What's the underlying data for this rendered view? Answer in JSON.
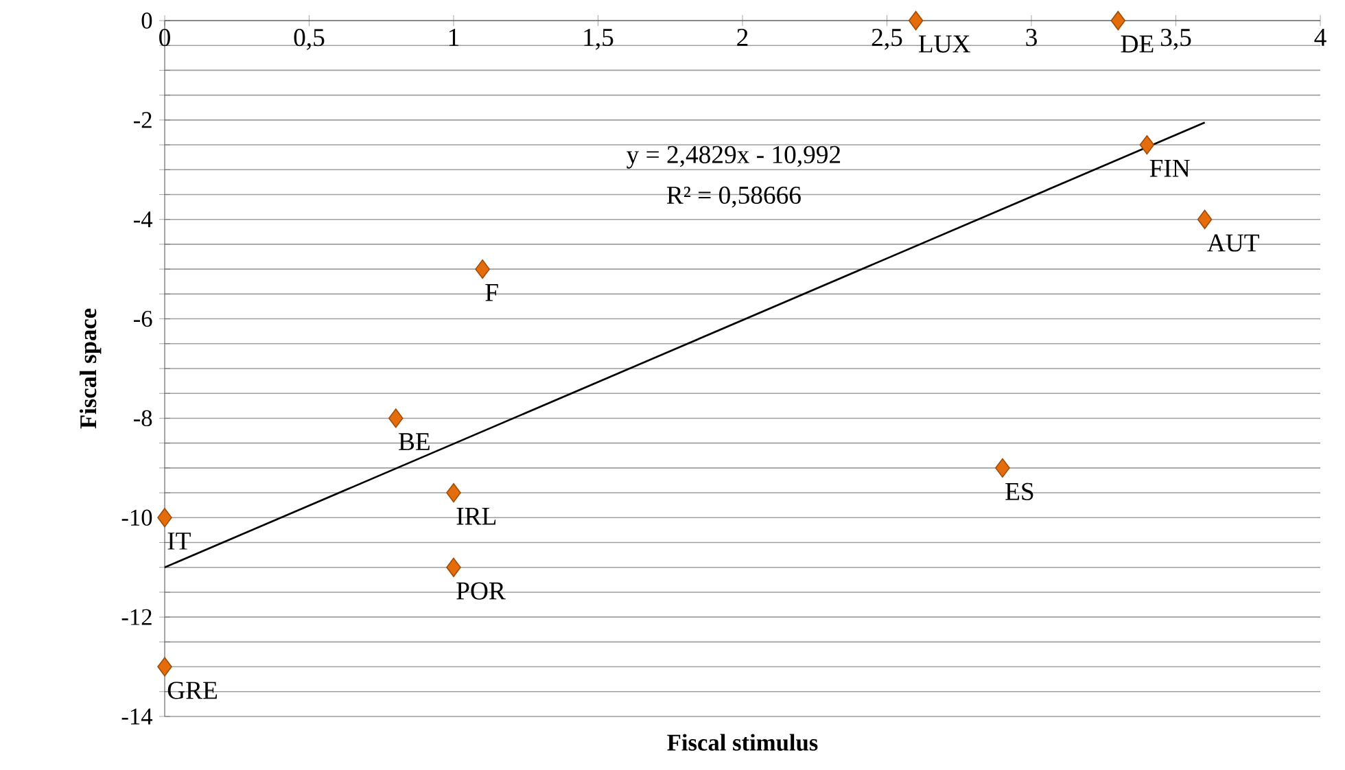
{
  "chart_data": {
    "type": "scatter",
    "xlabel": "Fiscal stimulus",
    "ylabel": "Fiscal space",
    "xlim": [
      0,
      4
    ],
    "ylim": [
      -14,
      0
    ],
    "xticks": [
      0,
      {
        "value": 0.5,
        "label": "0,5"
      },
      1,
      {
        "value": 1.5,
        "label": "1,5"
      },
      2,
      {
        "value": 2.5,
        "label": "2,5"
      },
      3,
      {
        "value": 3.5,
        "label": "3,5"
      },
      4
    ],
    "yticks": [
      -14,
      {
        "value": -13.5,
        "label": null
      },
      {
        "value": -13,
        "label": null
      },
      {
        "value": -12.5,
        "label": null
      },
      -12,
      {
        "value": -11.5,
        "label": null
      },
      {
        "value": -11,
        "label": null
      },
      {
        "value": -10.5,
        "label": null
      },
      -10,
      {
        "value": -9.5,
        "label": null
      },
      {
        "value": -9,
        "label": null
      },
      {
        "value": -8.5,
        "label": null
      },
      -8,
      {
        "value": -7.5,
        "label": null
      },
      {
        "value": -7,
        "label": null
      },
      {
        "value": -6.5,
        "label": null
      },
      -6,
      {
        "value": -5.5,
        "label": null
      },
      {
        "value": -5,
        "label": null
      },
      {
        "value": -4.5,
        "label": null
      },
      -4,
      {
        "value": -3.5,
        "label": null
      },
      {
        "value": -3,
        "label": null
      },
      {
        "value": -2.5,
        "label": null
      },
      -2,
      {
        "value": -1.5,
        "label": null
      },
      {
        "value": -1,
        "label": null
      },
      {
        "value": -0.5,
        "label": null
      },
      0
    ],
    "grid": "y",
    "marker": "diamond",
    "series": [
      {
        "color": "#e46c0a",
        "x": [
          2.6,
          3.3,
          3.4,
          3.6,
          1.1,
          0.8,
          1.0,
          1.0,
          2.9,
          0,
          0
        ],
        "values": [
          0,
          0,
          -2.5,
          -4,
          -5,
          -8,
          -9.5,
          -11,
          -9,
          -10,
          -13
        ]
      },
      {
        "type": "line",
        "color": "#000000",
        "marker": "none",
        "x": [
          0,
          3.6
        ],
        "values": [
          -11,
          -2.05
        ]
      }
    ],
    "annotations": [
      "y = 2,4829x - 10,992",
      "R² = 0,58666",
      {
        "text": "LUX",
        "x": 2.6,
        "y": 0
      },
      {
        "text": "DE",
        "x": 3.3,
        "y": 0
      },
      {
        "text": "FIN",
        "x": 3.4,
        "y": -2.5
      },
      {
        "text": "AUT",
        "x": 3.6,
        "y": -4
      },
      {
        "text": "F",
        "x": 1.1,
        "y": -5
      },
      {
        "text": "BE",
        "x": 0.8,
        "y": -8
      },
      {
        "text": "IRL",
        "x": 1.0,
        "y": -9.5
      },
      {
        "text": "POR",
        "x": 1.0,
        "y": -11
      },
      {
        "text": "ES",
        "x": 2.9,
        "y": -9
      },
      {
        "text": "IT",
        "x": 0,
        "y": -10
      },
      {
        "text": "GRE",
        "x": 0,
        "y": -13
      }
    ]
  }
}
